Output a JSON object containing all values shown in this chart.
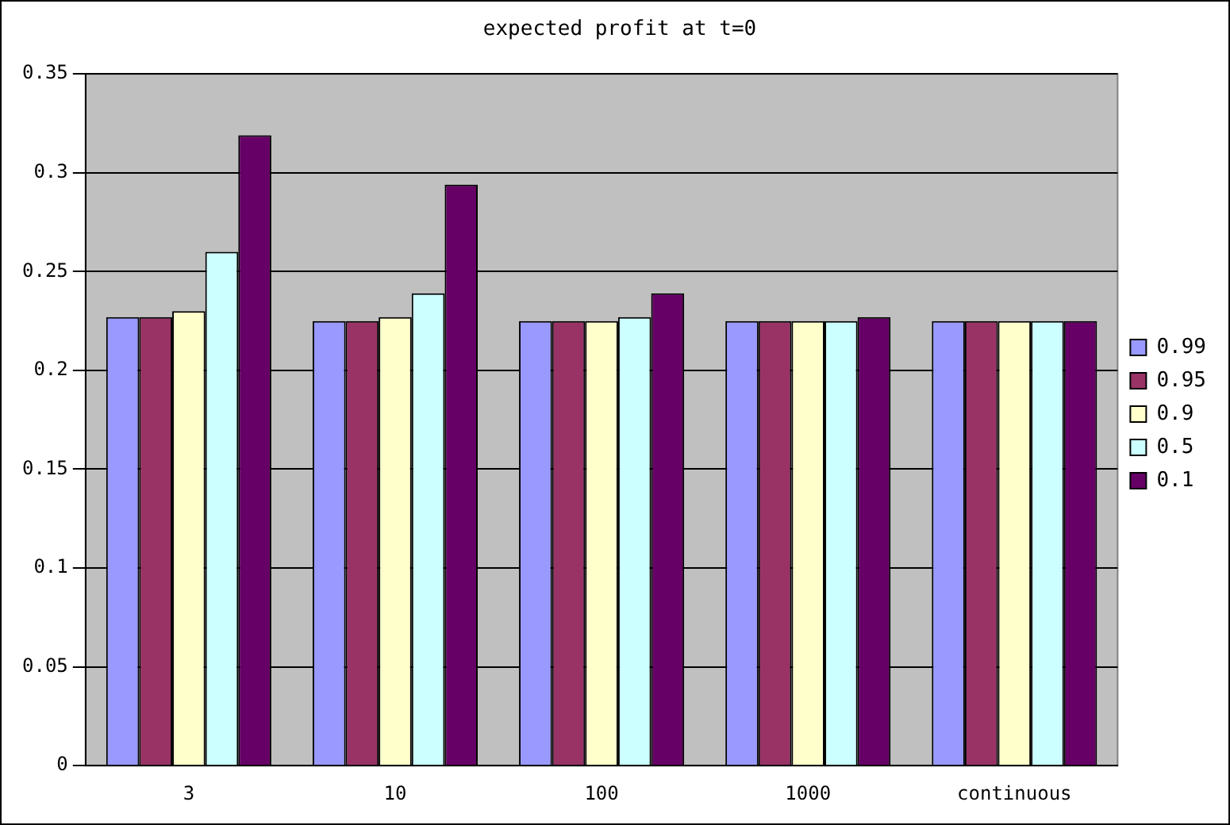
{
  "chart_data": {
    "type": "bar",
    "title": "expected profit at t=0",
    "categories": [
      "3",
      "10",
      "100",
      "1000",
      "continuous"
    ],
    "series": [
      {
        "name": "0.99",
        "color": "#9999ff",
        "values": [
          0.227,
          0.225,
          0.225,
          0.225,
          0.225
        ]
      },
      {
        "name": "0.95",
        "color": "#993366",
        "values": [
          0.227,
          0.225,
          0.225,
          0.225,
          0.225
        ]
      },
      {
        "name": "0.9",
        "color": "#ffffcc",
        "values": [
          0.23,
          0.227,
          0.225,
          0.225,
          0.225
        ]
      },
      {
        "name": "0.5",
        "color": "#ccffff",
        "values": [
          0.26,
          0.239,
          0.227,
          0.225,
          0.225
        ]
      },
      {
        "name": "0.1",
        "color": "#660066",
        "values": [
          0.319,
          0.294,
          0.239,
          0.227,
          0.225
        ]
      }
    ],
    "ylim": [
      0,
      0.35
    ],
    "yticks": [
      0,
      0.05,
      0.1,
      0.15,
      0.2,
      0.25,
      0.3,
      0.35
    ],
    "grid": "y",
    "legend": "right"
  }
}
